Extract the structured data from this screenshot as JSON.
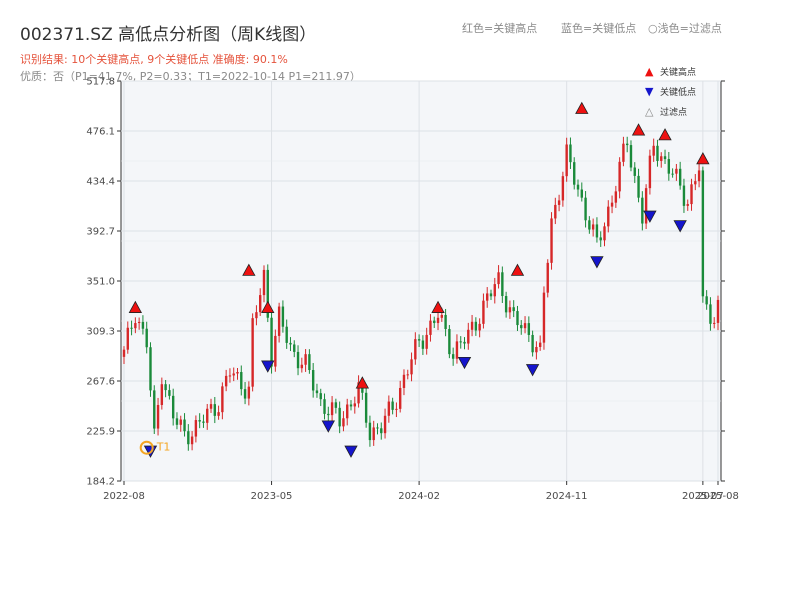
{
  "header": {
    "title": "002371.SZ 高低点分析图（周K线图）",
    "result": "识别结果: 10个关键高点, 9个关键低点  准确度: 90.1%",
    "quality": "优质：否（P1=41.7%, P2=0.33；T1=2022-10-14 P1=211.97）",
    "legend_red": "红色=关键高点",
    "legend_blue": "蓝色=关键低点",
    "legend_light": "○浅色=过滤点"
  },
  "colors": {
    "up": "#d62728",
    "down": "#1a8a3a",
    "high": "#ee1111",
    "low": "#1515cc",
    "t1": "#f5a623"
  },
  "chart_data": {
    "type": "candlestick",
    "title": "002371.SZ 高低点分析图（周K线图）",
    "ylim": [
      184.2,
      517.8
    ],
    "yticks": [
      184.2,
      225.9,
      267.6,
      309.3,
      351.0,
      392.7,
      434.4,
      476.1,
      517.8
    ],
    "xticks": [
      {
        "label": "2022-08",
        "idx": 0
      },
      {
        "label": "2023-05",
        "idx": 39
      },
      {
        "label": "2024-02",
        "idx": 78
      },
      {
        "label": "2024-11",
        "idx": 117
      },
      {
        "label": "2025-07",
        "idx": 153
      },
      {
        "label": "2025-08",
        "idx": 157
      }
    ],
    "legend": [
      {
        "symbol": "▲",
        "label": "关键高点",
        "color": "#ee1111"
      },
      {
        "symbol": "▼",
        "label": "关键低点",
        "color": "#1515cc"
      },
      {
        "symbol": "△",
        "label": "过滤点",
        "color": "#888888"
      }
    ],
    "t1_label": "T1",
    "anchors": [
      [
        0,
        290
      ],
      [
        3,
        325
      ],
      [
        6,
        300
      ],
      [
        8,
        218
      ],
      [
        10,
        275
      ],
      [
        13,
        238
      ],
      [
        16,
        222
      ],
      [
        20,
        232
      ],
      [
        25,
        250
      ],
      [
        28,
        275
      ],
      [
        33,
        260
      ],
      [
        34,
        312
      ],
      [
        37,
        355
      ],
      [
        39,
        290
      ],
      [
        41,
        320
      ],
      [
        44,
        295
      ],
      [
        48,
        280
      ],
      [
        52,
        250
      ],
      [
        57,
        235
      ],
      [
        62,
        260
      ],
      [
        65,
        225
      ],
      [
        68,
        230
      ],
      [
        71,
        245
      ],
      [
        74,
        270
      ],
      [
        78,
        300
      ],
      [
        83,
        322
      ],
      [
        87,
        292
      ],
      [
        91,
        305
      ],
      [
        95,
        330
      ],
      [
        99,
        352
      ],
      [
        103,
        318
      ],
      [
        107,
        308
      ],
      [
        110,
        290
      ],
      [
        111,
        340
      ],
      [
        113,
        400
      ],
      [
        117,
        455
      ],
      [
        121,
        418
      ],
      [
        125,
        380
      ],
      [
        129,
        420
      ],
      [
        133,
        468
      ],
      [
        137,
        405
      ],
      [
        140,
        465
      ],
      [
        145,
        440
      ],
      [
        149,
        418
      ],
      [
        152,
        445
      ],
      [
        153,
        330
      ],
      [
        156,
        322
      ],
      [
        157,
        330
      ]
    ],
    "highs": [
      [
        3,
        323
      ],
      [
        33,
        354
      ],
      [
        38,
        323
      ],
      [
        63,
        260
      ],
      [
        83,
        323
      ],
      [
        104,
        354
      ],
      [
        121,
        489
      ],
      [
        136,
        471
      ],
      [
        143,
        467
      ],
      [
        153,
        447
      ]
    ],
    "lows": [
      [
        7,
        215
      ],
      [
        38,
        286
      ],
      [
        54,
        236
      ],
      [
        60,
        215
      ],
      [
        90,
        289
      ],
      [
        108,
        283
      ],
      [
        125,
        373
      ],
      [
        139,
        411
      ],
      [
        147,
        403
      ]
    ],
    "t1": [
      6,
      211.97
    ]
  }
}
